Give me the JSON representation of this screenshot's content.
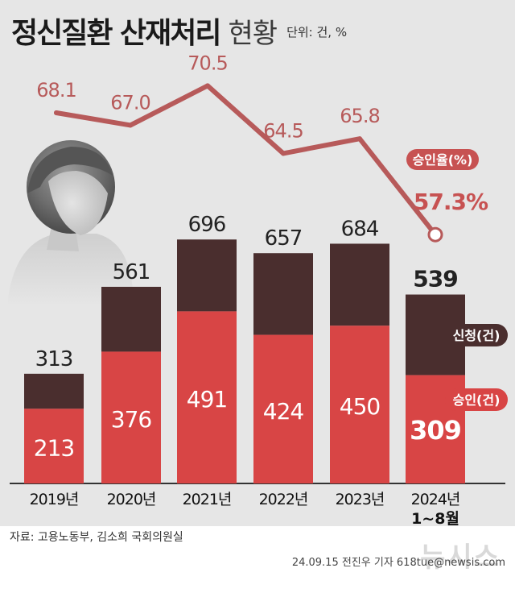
{
  "header": {
    "title": "정신질환 산재처리",
    "subtitle": "현황",
    "unit": "단위: 건, %"
  },
  "chart_data": {
    "type": "bar",
    "categories": [
      "2019년",
      "2020년",
      "2021년",
      "2022년",
      "2023년",
      "2024년"
    ],
    "category_note": "1~8월",
    "series": [
      {
        "name": "승인",
        "unit": "(건)",
        "values": [
          213,
          376,
          491,
          424,
          450,
          309
        ]
      },
      {
        "name": "신청",
        "unit": "(건)",
        "values": [
          313,
          561,
          696,
          657,
          684,
          539
        ]
      },
      {
        "name": "승인율",
        "unit": "(%)",
        "values": [
          68.1,
          67.0,
          70.5,
          64.5,
          65.8,
          57.3
        ]
      }
    ],
    "last_rate_label": "57.3%",
    "colors": {
      "approved": "#d84545",
      "applied": "#4a2e2e",
      "rate_line": "#b75a5a",
      "rate_text": "#c75252"
    }
  },
  "footer": {
    "source": "자료: 고용노동부, 김소희 국회의원실",
    "byline": "24.09.15 전진우 기자 618tue@newsis.com",
    "watermark": "뉴시스"
  }
}
